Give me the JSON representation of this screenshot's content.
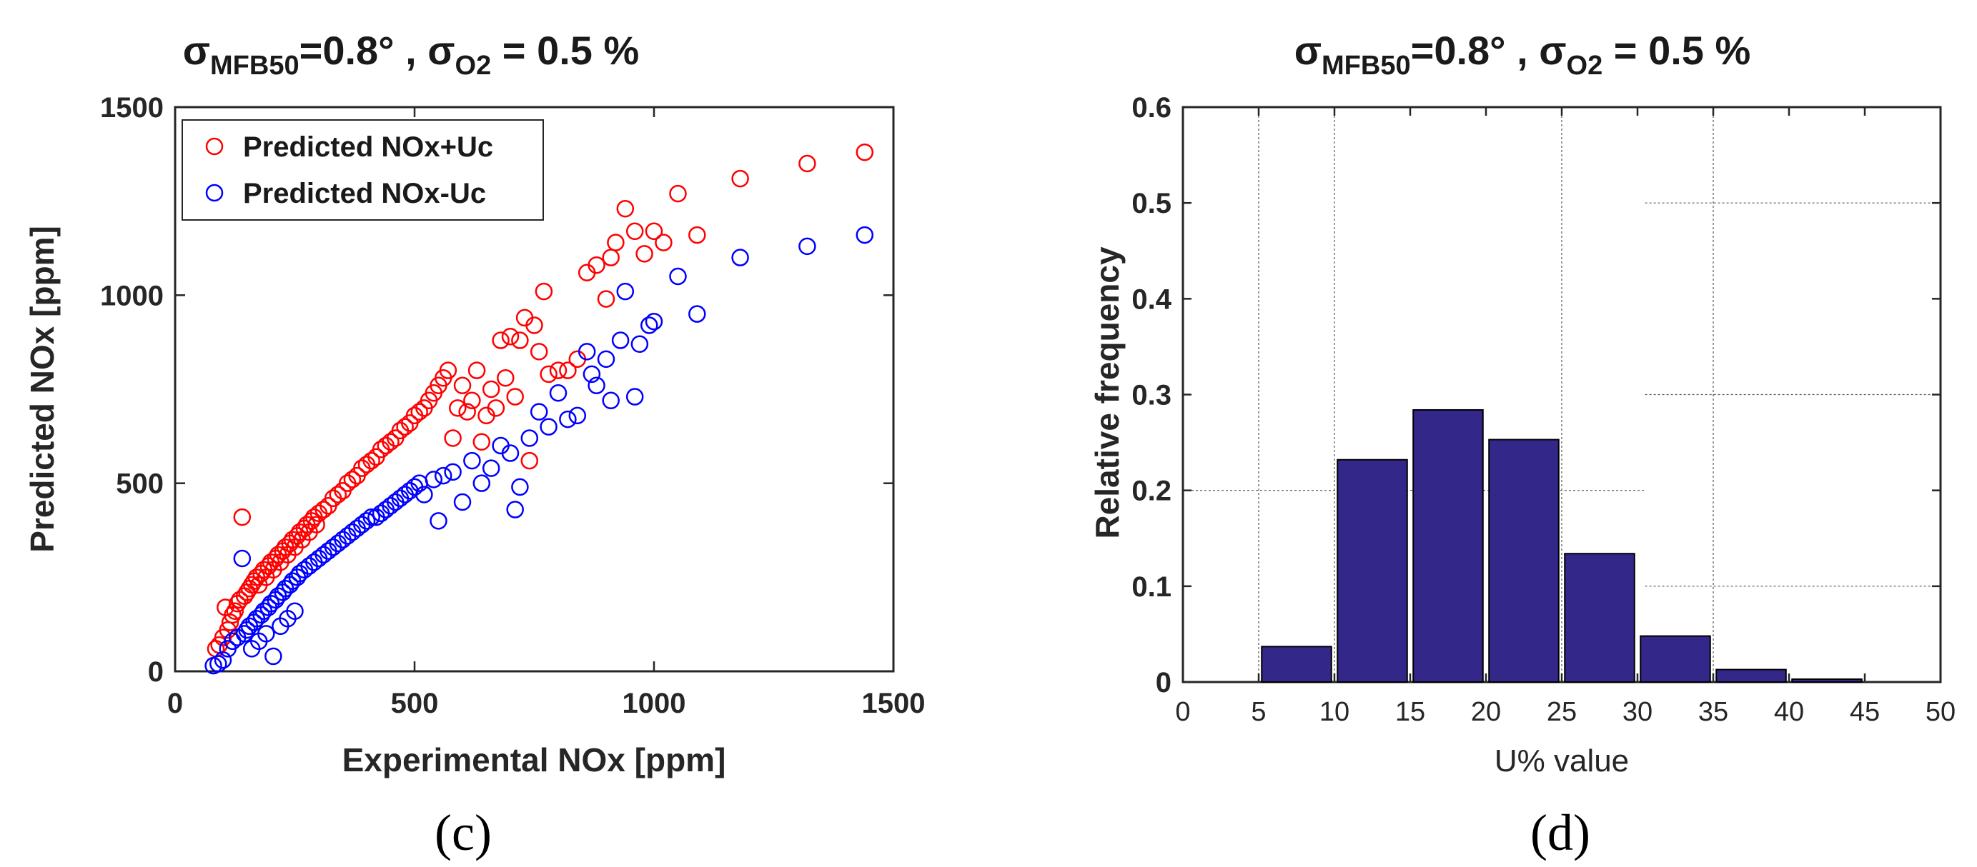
{
  "chart_data": [
    {
      "type": "scatter",
      "panel_label": "(c)",
      "title": {
        "sigma": "σ",
        "sub1": "MFB50",
        "mid": "=0.8° , σ",
        "sub2": "O2",
        "end": " = 0.5 %"
      },
      "xlabel": "Experimental NOx [ppm]",
      "ylabel": "Predicted NOx [ppm]",
      "xlim": [
        0,
        1500
      ],
      "ylim": [
        0,
        1500
      ],
      "xticks": [
        "0",
        "500",
        "1000",
        "1500"
      ],
      "yticks": [
        "0",
        "500",
        "1000",
        "1500"
      ],
      "legend_position": "top-left",
      "series": [
        {
          "name": "Predicted NOx+Uc",
          "color": "#ff0000",
          "points": [
            [
              85,
              60
            ],
            [
              92,
              70
            ],
            [
              100,
              90
            ],
            [
              105,
              170
            ],
            [
              110,
              110
            ],
            [
              115,
              130
            ],
            [
              120,
              150
            ],
            [
              125,
              160
            ],
            [
              130,
              180
            ],
            [
              135,
              190
            ],
            [
              140,
              410
            ],
            [
              145,
              200
            ],
            [
              150,
              210
            ],
            [
              155,
              220
            ],
            [
              160,
              230
            ],
            [
              165,
              240
            ],
            [
              170,
              250
            ],
            [
              175,
              230
            ],
            [
              180,
              260
            ],
            [
              185,
              270
            ],
            [
              190,
              250
            ],
            [
              195,
              280
            ],
            [
              200,
              290
            ],
            [
              205,
              270
            ],
            [
              210,
              300
            ],
            [
              215,
              310
            ],
            [
              220,
              290
            ],
            [
              225,
              320
            ],
            [
              230,
              330
            ],
            [
              235,
              310
            ],
            [
              240,
              340
            ],
            [
              245,
              350
            ],
            [
              250,
              330
            ],
            [
              255,
              360
            ],
            [
              260,
              370
            ],
            [
              265,
              350
            ],
            [
              270,
              380
            ],
            [
              275,
              390
            ],
            [
              280,
              370
            ],
            [
              285,
              400
            ],
            [
              290,
              410
            ],
            [
              295,
              390
            ],
            [
              300,
              420
            ],
            [
              310,
              430
            ],
            [
              320,
              440
            ],
            [
              330,
              460
            ],
            [
              340,
              470
            ],
            [
              350,
              480
            ],
            [
              360,
              500
            ],
            [
              370,
              510
            ],
            [
              380,
              520
            ],
            [
              390,
              540
            ],
            [
              400,
              550
            ],
            [
              410,
              560
            ],
            [
              420,
              570
            ],
            [
              430,
              590
            ],
            [
              440,
              600
            ],
            [
              450,
              610
            ],
            [
              460,
              620
            ],
            [
              470,
              640
            ],
            [
              480,
              650
            ],
            [
              490,
              660
            ],
            [
              500,
              680
            ],
            [
              510,
              690
            ],
            [
              520,
              700
            ],
            [
              530,
              720
            ],
            [
              540,
              740
            ],
            [
              550,
              760
            ],
            [
              560,
              780
            ],
            [
              570,
              800
            ],
            [
              580,
              620
            ],
            [
              590,
              700
            ],
            [
              600,
              760
            ],
            [
              610,
              690
            ],
            [
              620,
              720
            ],
            [
              630,
              800
            ],
            [
              640,
              610
            ],
            [
              650,
              680
            ],
            [
              660,
              750
            ],
            [
              670,
              700
            ],
            [
              680,
              880
            ],
            [
              690,
              780
            ],
            [
              700,
              890
            ],
            [
              710,
              730
            ],
            [
              720,
              880
            ],
            [
              730,
              940
            ],
            [
              740,
              560
            ],
            [
              750,
              920
            ],
            [
              760,
              850
            ],
            [
              770,
              1010
            ],
            [
              780,
              790
            ],
            [
              800,
              800
            ],
            [
              820,
              800
            ],
            [
              840,
              830
            ],
            [
              860,
              1060
            ],
            [
              880,
              1080
            ],
            [
              900,
              990
            ],
            [
              910,
              1100
            ],
            [
              920,
              1140
            ],
            [
              940,
              1230
            ],
            [
              960,
              1170
            ],
            [
              980,
              1110
            ],
            [
              1000,
              1170
            ],
            [
              1020,
              1140
            ],
            [
              1050,
              1270
            ],
            [
              1090,
              1160
            ],
            [
              1180,
              1310
            ],
            [
              1320,
              1350
            ],
            [
              1440,
              1380
            ]
          ]
        },
        {
          "name": "Predicted NOx-Uc",
          "color": "#0000ff",
          "points": [
            [
              80,
              15
            ],
            [
              90,
              20
            ],
            [
              100,
              30
            ],
            [
              110,
              60
            ],
            [
              120,
              80
            ],
            [
              130,
              90
            ],
            [
              140,
              300
            ],
            [
              145,
              100
            ],
            [
              150,
              110
            ],
            [
              155,
              120
            ],
            [
              160,
              60
            ],
            [
              165,
              130
            ],
            [
              170,
              140
            ],
            [
              175,
              80
            ],
            [
              180,
              150
            ],
            [
              185,
              160
            ],
            [
              190,
              100
            ],
            [
              195,
              170
            ],
            [
              200,
              180
            ],
            [
              205,
              40
            ],
            [
              210,
              190
            ],
            [
              215,
              200
            ],
            [
              220,
              120
            ],
            [
              225,
              210
            ],
            [
              230,
              220
            ],
            [
              235,
              140
            ],
            [
              240,
              230
            ],
            [
              245,
              240
            ],
            [
              250,
              160
            ],
            [
              255,
              250
            ],
            [
              260,
              260
            ],
            [
              270,
              270
            ],
            [
              280,
              280
            ],
            [
              290,
              290
            ],
            [
              300,
              300
            ],
            [
              310,
              310
            ],
            [
              320,
              320
            ],
            [
              330,
              330
            ],
            [
              340,
              340
            ],
            [
              350,
              350
            ],
            [
              360,
              360
            ],
            [
              370,
              370
            ],
            [
              380,
              380
            ],
            [
              390,
              390
            ],
            [
              400,
              400
            ],
            [
              410,
              410
            ],
            [
              420,
              410
            ],
            [
              430,
              420
            ],
            [
              440,
              430
            ],
            [
              450,
              440
            ],
            [
              460,
              450
            ],
            [
              470,
              460
            ],
            [
              480,
              470
            ],
            [
              490,
              480
            ],
            [
              500,
              490
            ],
            [
              510,
              500
            ],
            [
              520,
              470
            ],
            [
              540,
              510
            ],
            [
              550,
              400
            ],
            [
              560,
              520
            ],
            [
              580,
              530
            ],
            [
              600,
              450
            ],
            [
              620,
              560
            ],
            [
              640,
              500
            ],
            [
              660,
              540
            ],
            [
              680,
              600
            ],
            [
              700,
              580
            ],
            [
              710,
              430
            ],
            [
              720,
              490
            ],
            [
              740,
              620
            ],
            [
              760,
              690
            ],
            [
              780,
              650
            ],
            [
              800,
              740
            ],
            [
              820,
              670
            ],
            [
              840,
              680
            ],
            [
              860,
              850
            ],
            [
              870,
              790
            ],
            [
              880,
              760
            ],
            [
              900,
              830
            ],
            [
              910,
              720
            ],
            [
              930,
              880
            ],
            [
              940,
              1010
            ],
            [
              960,
              730
            ],
            [
              970,
              870
            ],
            [
              990,
              920
            ],
            [
              1000,
              930
            ],
            [
              1050,
              1050
            ],
            [
              1090,
              950
            ],
            [
              1180,
              1100
            ],
            [
              1320,
              1130
            ],
            [
              1440,
              1160
            ]
          ]
        }
      ]
    },
    {
      "type": "bar",
      "panel_label": "(d)",
      "title": {
        "sigma": "σ",
        "sub1": "MFB50",
        "mid": "=0.8° , σ",
        "sub2": "O2",
        "end": " = 0.5 %"
      },
      "xlabel": "U% value",
      "ylabel": "Relative frequency",
      "xlim": [
        0,
        50
      ],
      "ylim": [
        0,
        0.6
      ],
      "xticks": [
        "0",
        "5",
        "10",
        "15",
        "20",
        "25",
        "30",
        "35",
        "40",
        "45",
        "50"
      ],
      "yticks": [
        "0",
        "0.1",
        "0.2",
        "0.3",
        "0.4",
        "0.5",
        "0.6"
      ],
      "bar_color": "#33288a",
      "bin_width": 4.6,
      "bin_centers": [
        7.5,
        12.5,
        17.5,
        22.5,
        27.5,
        32.5,
        37.5,
        42.5
      ],
      "values": [
        0.037,
        0.232,
        0.284,
        0.253,
        0.134,
        0.048,
        0.013,
        0.003
      ]
    }
  ]
}
